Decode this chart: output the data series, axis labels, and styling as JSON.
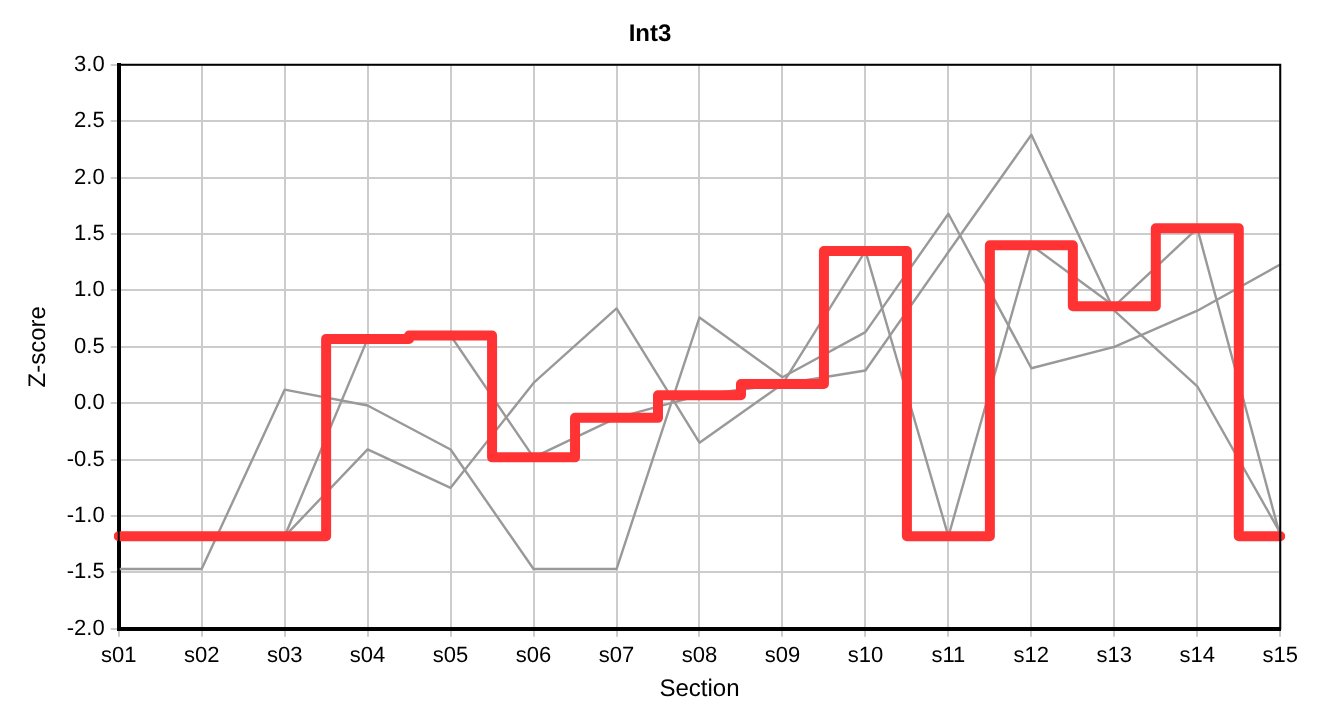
{
  "chart_data": {
    "type": "line",
    "title": "Int3",
    "xlabel": "Section",
    "ylabel": "Z-score",
    "categories": [
      "s01",
      "s02",
      "s03",
      "s04",
      "s05",
      "s06",
      "s07",
      "s08",
      "s09",
      "s10",
      "s11",
      "s12",
      "s13",
      "s14",
      "s15"
    ],
    "series": [
      {
        "type": "line",
        "color": "#999999",
        "values": [
          -1.47,
          -1.47,
          0.12,
          -0.02,
          -0.41,
          -1.47,
          -1.47,
          0.76,
          0.23,
          0.63,
          1.68,
          0.31,
          0.5,
          0.82,
          1.23
        ]
      },
      {
        "type": "line",
        "color": "#999999",
        "values": [
          null,
          -1.18,
          -1.18,
          -0.41,
          -0.75,
          0.18,
          0.84,
          -0.35,
          0.17,
          0.29,
          1.34,
          2.38,
          0.82,
          0.15,
          -1.15
        ]
      },
      {
        "type": "line",
        "color": "#999999",
        "values": [
          null,
          -1.18,
          -1.18,
          0.57,
          0.6,
          -0.48,
          -0.13,
          0.07,
          0.17,
          1.35,
          -1.18,
          1.4,
          0.86,
          1.55,
          -1.18
        ]
      },
      {
        "type": "step",
        "color": "#ff3333",
        "values": [
          -1.18,
          -1.18,
          -1.18,
          0.57,
          0.6,
          -0.48,
          -0.13,
          0.07,
          0.17,
          1.35,
          -1.18,
          1.4,
          0.86,
          1.55,
          -1.18
        ]
      }
    ],
    "ylim": [
      -2,
      3
    ],
    "yticks": [
      {
        "value": -2,
        "label": "-2.0"
      },
      {
        "value": -1.5,
        "label": "-1.5"
      },
      {
        "value": -1,
        "label": "-1.0"
      },
      {
        "value": -0.5,
        "label": "-0.5"
      },
      {
        "value": 0,
        "label": "0.0"
      },
      {
        "value": 0.5,
        "label": "0.5"
      },
      {
        "value": 1,
        "label": "1.0"
      },
      {
        "value": 1.5,
        "label": "1.5"
      },
      {
        "value": 2,
        "label": "2.0"
      },
      {
        "value": 2.5,
        "label": "2.5"
      },
      {
        "value": 3,
        "label": "3.0"
      }
    ],
    "grid": true,
    "legend": false,
    "marker": "none"
  }
}
